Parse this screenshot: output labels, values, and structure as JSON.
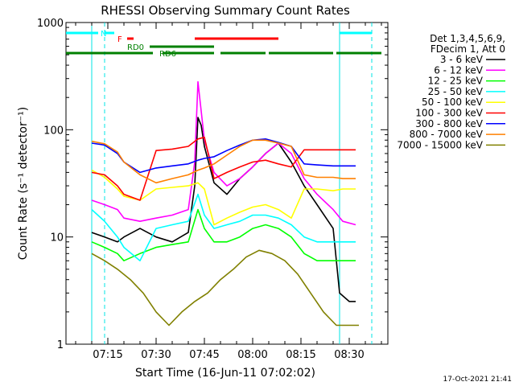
{
  "chart_data": {
    "type": "line",
    "title": "RHESSI Observing Summary Count Rates",
    "xlabel": "Start Time (16-Jun-11 07:02:02)",
    "ylabel": "Count Rate (s⁻¹ detector⁻¹)",
    "yscale": "log",
    "xlim": [
      "07:02",
      "08:42"
    ],
    "ylim": [
      1,
      1000
    ],
    "x_ticks": [
      "07:15",
      "07:30",
      "07:45",
      "08:00",
      "08:15",
      "08:30"
    ],
    "y_ticks": [
      {
        "value": 1,
        "label": "1"
      },
      {
        "value": 10,
        "label": "10"
      },
      {
        "value": 100,
        "label": "100"
      },
      {
        "value": 1000,
        "label": "1000"
      }
    ],
    "legend": {
      "placement": "top-right",
      "header": [
        "Det 1,3,4,5,6,9,",
        "FDecim 1, Att 0"
      ]
    },
    "series": [
      {
        "name": "3 - 6 keV",
        "color": "#000000",
        "x": [
          "07:10",
          "07:14",
          "07:18",
          "07:20",
          "07:25",
          "07:30",
          "07:35",
          "07:40",
          "07:42",
          "07:43",
          "07:44",
          "07:45",
          "07:48",
          "07:52",
          "07:56",
          "08:00",
          "08:04",
          "08:08",
          "08:12",
          "08:16",
          "08:20",
          "08:25",
          "08:27",
          "08:30",
          "08:32"
        ],
        "y": [
          11,
          10,
          9,
          10,
          12,
          10,
          9,
          11,
          30,
          130,
          110,
          70,
          32,
          25,
          35,
          45,
          60,
          75,
          50,
          30,
          20,
          12,
          3,
          2.5,
          2.5
        ]
      },
      {
        "name": "6 - 12 keV",
        "color": "#ff00ff",
        "x": [
          "07:10",
          "07:14",
          "07:18",
          "07:20",
          "07:25",
          "07:30",
          "07:35",
          "07:40",
          "07:42",
          "07:43",
          "07:44",
          "07:45",
          "07:48",
          "07:52",
          "07:56",
          "08:00",
          "08:04",
          "08:08",
          "08:12",
          "08:16",
          "08:20",
          "08:25",
          "08:28",
          "08:32"
        ],
        "y": [
          22,
          20,
          18,
          15,
          14,
          15,
          16,
          18,
          50,
          280,
          150,
          80,
          40,
          30,
          35,
          45,
          60,
          75,
          60,
          35,
          25,
          18,
          14,
          13
        ]
      },
      {
        "name": "12 - 25 keV",
        "color": "#00ff00",
        "x": [
          "07:10",
          "07:14",
          "07:18",
          "07:20",
          "07:25",
          "07:30",
          "07:35",
          "07:40",
          "07:43",
          "07:45",
          "07:48",
          "07:52",
          "07:56",
          "08:00",
          "08:04",
          "08:08",
          "08:12",
          "08:16",
          "08:20",
          "08:25",
          "08:28",
          "08:32"
        ],
        "y": [
          9,
          8,
          7,
          6,
          7,
          8,
          8.5,
          9,
          18,
          12,
          9,
          9,
          10,
          12,
          13,
          12,
          10,
          7,
          6,
          6,
          6,
          6
        ]
      },
      {
        "name": "25 - 50 keV",
        "color": "#00ffff",
        "x": [
          "07:10",
          "07:14",
          "07:18",
          "07:20",
          "07:25",
          "07:30",
          "07:35",
          "07:40",
          "07:43",
          "07:45",
          "07:48",
          "07:52",
          "07:56",
          "08:00",
          "08:04",
          "08:08",
          "08:12",
          "08:16",
          "08:20",
          "08:25",
          "08:28",
          "08:32"
        ],
        "y": [
          18,
          14,
          10,
          8,
          6,
          12,
          13,
          14,
          25,
          16,
          12,
          13,
          14,
          16,
          16,
          15,
          13,
          10,
          9,
          9,
          9,
          9
        ]
      },
      {
        "name": "50 - 100 keV",
        "color": "#ffff00",
        "x": [
          "07:10",
          "07:14",
          "07:18",
          "07:20",
          "07:25",
          "07:30",
          "07:35",
          "07:40",
          "07:43",
          "07:45",
          "07:48",
          "07:52",
          "07:56",
          "08:00",
          "08:04",
          "08:08",
          "08:12",
          "08:16",
          "08:20",
          "08:25",
          "08:28",
          "08:32"
        ],
        "y": [
          42,
          36,
          28,
          24,
          22,
          28,
          29,
          30,
          32,
          28,
          13,
          15,
          17,
          19,
          20,
          18,
          15,
          28,
          28,
          27,
          28,
          28
        ]
      },
      {
        "name": "100 - 300 keV",
        "color": "#ff0000",
        "x": [
          "07:10",
          "07:14",
          "07:18",
          "07:20",
          "07:25",
          "07:30",
          "07:35",
          "07:40",
          "07:43",
          "07:45",
          "07:48",
          "07:52",
          "07:56",
          "08:00",
          "08:04",
          "08:08",
          "08:12",
          "08:16",
          "08:20",
          "08:25",
          "08:28",
          "08:32"
        ],
        "y": [
          40,
          38,
          30,
          25,
          22,
          64,
          66,
          70,
          82,
          85,
          35,
          40,
          45,
          50,
          52,
          48,
          45,
          65,
          65,
          65,
          65,
          65
        ]
      },
      {
        "name": "300 - 800 keV",
        "color": "#0000ff",
        "x": [
          "07:10",
          "07:14",
          "07:18",
          "07:20",
          "07:25",
          "07:30",
          "07:35",
          "07:40",
          "07:43",
          "07:45",
          "07:48",
          "07:52",
          "07:56",
          "08:00",
          "08:04",
          "08:08",
          "08:12",
          "08:16",
          "08:20",
          "08:25",
          "08:28",
          "08:32"
        ],
        "y": [
          75,
          72,
          60,
          50,
          40,
          44,
          46,
          48,
          52,
          54,
          56,
          64,
          72,
          80,
          82,
          76,
          70,
          48,
          47,
          46,
          46,
          46
        ]
      },
      {
        "name": "800 - 7000 keV",
        "color": "#ff8000",
        "x": [
          "07:10",
          "07:14",
          "07:18",
          "07:20",
          "07:25",
          "07:30",
          "07:35",
          "07:40",
          "07:43",
          "07:45",
          "07:48",
          "07:52",
          "07:56",
          "08:00",
          "08:04",
          "08:08",
          "08:12",
          "08:16",
          "08:20",
          "08:25",
          "08:28",
          "08:32"
        ],
        "y": [
          78,
          74,
          62,
          50,
          38,
          32,
          35,
          38,
          42,
          44,
          48,
          58,
          70,
          80,
          80,
          75,
          70,
          38,
          36,
          36,
          35,
          35
        ]
      },
      {
        "name": "7000 - 15000 keV",
        "color": "#808000",
        "x": [
          "07:10",
          "07:14",
          "07:18",
          "07:22",
          "07:26",
          "07:30",
          "07:34",
          "07:38",
          "07:42",
          "07:46",
          "07:50",
          "07:54",
          "07:58",
          "08:02",
          "08:06",
          "08:10",
          "08:14",
          "08:18",
          "08:22",
          "08:26",
          "08:30",
          "08:33"
        ],
        "y": [
          7,
          6,
          5,
          4,
          3,
          2,
          1.5,
          2,
          2.5,
          3,
          4,
          5,
          6.5,
          7.5,
          7,
          6,
          4.5,
          3,
          2,
          1.5,
          1.5,
          1.5
        ]
      }
    ],
    "annotations": [
      {
        "label": "N",
        "color": "#00ffff",
        "row": 1,
        "segments": [
          [
            "07:02",
            "07:12"
          ],
          [
            "07:14",
            "07:17"
          ],
          [
            "08:27",
            "08:37"
          ]
        ]
      },
      {
        "label": "F",
        "color": "#ff0000",
        "row": 2,
        "segments": [
          [
            "07:21",
            "07:23"
          ],
          [
            "07:42",
            "08:08"
          ]
        ]
      },
      {
        "label": "RD0",
        "color": "#008000",
        "row": 3,
        "segments": [
          [
            "07:28",
            "07:48"
          ]
        ]
      },
      {
        "label": "RD6",
        "color": "#008000",
        "row": 4,
        "segments": [
          [
            "07:02",
            "07:29"
          ],
          [
            "07:32",
            "07:48"
          ],
          [
            "07:50",
            "08:04"
          ],
          [
            "08:05",
            "08:25"
          ],
          [
            "08:26",
            "08:40"
          ]
        ]
      }
    ],
    "night_boundaries": [
      "07:10",
      "08:27"
    ],
    "saa_boundaries": [
      "07:14",
      "08:37"
    ]
  },
  "footer": {
    "timestamp": "17-Oct-2021 21:41"
  }
}
